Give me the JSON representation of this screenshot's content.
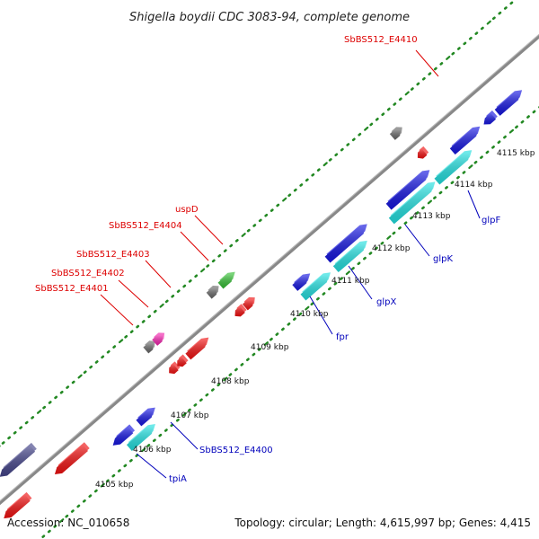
{
  "title": "Shigella boydii CDC 3083-94, complete genome",
  "footer": {
    "accession": "Accession: NC_010658",
    "summary": "Topology: circular; Length: 4,615,997 bp; Genes: 4,415"
  },
  "ticks": [
    "4105 kbp",
    "4106 kbp",
    "4107 kbp",
    "4108 kbp",
    "4109 kbp",
    "4110 kbp",
    "4111 kbp",
    "4112 kbp",
    "4113 kbp",
    "4114 kbp",
    "4115 kbp"
  ],
  "gene_labels": [
    {
      "id": "SbBS512_E4410",
      "text": "SbBS512_E4410",
      "color": "red"
    },
    {
      "id": "uspD",
      "text": "uspD",
      "color": "red"
    },
    {
      "id": "SbBS512_E4404",
      "text": "SbBS512_E4404",
      "color": "red"
    },
    {
      "id": "SbBS512_E4403",
      "text": "SbBS512_E4403",
      "color": "red"
    },
    {
      "id": "SbBS512_E4402",
      "text": "SbBS512_E4402",
      "color": "red"
    },
    {
      "id": "SbBS512_E4401",
      "text": "SbBS512_E4401",
      "color": "red"
    },
    {
      "id": "glpF",
      "text": "glpF",
      "color": "blue"
    },
    {
      "id": "glpK",
      "text": "glpK",
      "color": "blue"
    },
    {
      "id": "glpX",
      "text": "glpX",
      "color": "blue"
    },
    {
      "id": "fpr",
      "text": "fpr",
      "color": "blue"
    },
    {
      "id": "SbBS512_E4400",
      "text": "SbBS512_E4400",
      "color": "blue"
    },
    {
      "id": "tpiA",
      "text": "tpiA",
      "color": "blue"
    }
  ],
  "colors": {
    "backbone": "#888888",
    "tick_dots": "#228822",
    "red_genes": "#ee1111",
    "blue_genes": "#1515dd",
    "cyan_genes": "#22dddd",
    "gray_genes": "#666666",
    "magenta_gene": "#ee22aa",
    "green_gene": "#33bb33",
    "slate_gene": "#444488",
    "red_label": "#dd0000",
    "blue_label": "#0000bb"
  }
}
